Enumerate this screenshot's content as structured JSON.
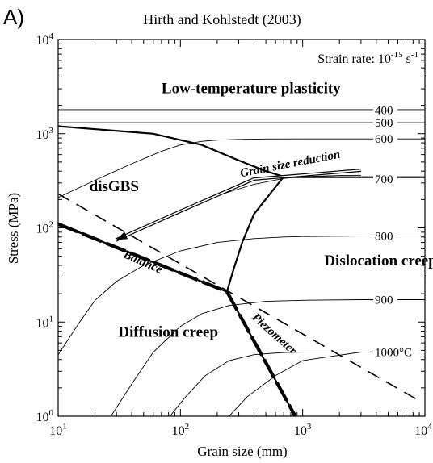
{
  "panel_label": "A)",
  "chart_data": {
    "type": "line",
    "title": "Hirth and Kohlstedt (2003)",
    "subtitle_main": "Strain rate: 10",
    "subtitle_exp": "-15",
    "subtitle_tail": " s",
    "subtitle_tail_exp": "-1",
    "xlabel": "Grain size (mm)",
    "ylabel": "Stress (MPa)",
    "x_scale": "log",
    "y_scale": "log",
    "xlim": [
      10,
      10000
    ],
    "ylim": [
      1,
      10000
    ],
    "x_ticks": [
      {
        "base": "10",
        "exp": "1",
        "v": 10
      },
      {
        "base": "10",
        "exp": "2",
        "v": 100
      },
      {
        "base": "10",
        "exp": "3",
        "v": 1000
      },
      {
        "base": "10",
        "exp": "4",
        "v": 10000
      }
    ],
    "y_ticks": [
      {
        "base": "10",
        "exp": "0",
        "v": 1
      },
      {
        "base": "10",
        "exp": "1",
        "v": 10
      },
      {
        "base": "10",
        "exp": "2",
        "v": 100
      },
      {
        "base": "10",
        "exp": "3",
        "v": 1000
      },
      {
        "base": "10",
        "exp": "4",
        "v": 10000
      }
    ],
    "grid": false,
    "region_labels": [
      {
        "text": "Low-temperature plasticity",
        "x": 70,
        "y": 2700
      },
      {
        "text": "disGBS",
        "x": 18,
        "y": 245
      },
      {
        "text": "Dislocation creep",
        "x": 1500,
        "y": 40
      },
      {
        "text": "Diffusion creep",
        "x": 31,
        "y": 7
      }
    ],
    "annotations": [
      {
        "text": "Grain size reduction",
        "x": 800,
        "y": 440,
        "angle": -11
      },
      {
        "text": "Balance",
        "x": 48,
        "y": 40,
        "angle": 24
      },
      {
        "text": "Piezometer",
        "x": 560,
        "y": 7,
        "angle": 42
      }
    ],
    "isotherm_labels": [
      {
        "text": "400",
        "y": 1780
      },
      {
        "text": "500",
        "y": 1310
      },
      {
        "text": "600",
        "y": 880
      },
      {
        "text": "700",
        "y": 330
      },
      {
        "text": "800",
        "y": 82
      },
      {
        "text": "900",
        "y": 17.3
      },
      {
        "text": "1000°C",
        "y": 4.8
      }
    ],
    "isotherms": [
      {
        "label_ref": "400",
        "x": [
          10,
          10000
        ],
        "y": [
          1800,
          1800
        ]
      },
      {
        "label_ref": "500",
        "x": [
          10,
          10000
        ],
        "y": [
          1310,
          1310
        ]
      },
      {
        "label_ref": "600",
        "x": [
          10,
          20,
          40,
          70,
          100,
          150,
          200,
          300,
          500,
          1000,
          3000,
          10000
        ],
        "y": [
          210,
          320,
          480,
          650,
          760,
          830,
          855,
          870,
          878,
          880,
          880,
          880
        ]
      },
      {
        "label_ref": "700",
        "x": [
          30,
          50,
          100,
          200,
          400,
          700,
          1000,
          2000,
          3000
        ],
        "y": [
          72,
          100,
          150,
          220,
          290,
          335,
          350,
          360,
          362
        ]
      },
      {
        "label_ref": "800",
        "x": [
          10,
          15,
          20,
          30,
          50,
          100,
          200,
          400,
          700,
          1000,
          3000,
          10000
        ],
        "y": [
          4.5,
          10,
          17,
          27,
          40,
          57,
          70,
          77,
          80,
          81,
          82,
          82
        ]
      },
      {
        "label_ref": "900",
        "x": [
          27,
          40,
          60,
          100,
          150,
          250,
          500,
          1000,
          3000,
          10000
        ],
        "y": [
          1,
          2.2,
          4.8,
          9,
          12.3,
          15,
          16.6,
          17,
          17.3,
          17.3
        ]
      },
      {
        "label_ref": "1000",
        "x": [
          82,
          110,
          160,
          250,
          400,
          700,
          1000,
          3000,
          10000
        ],
        "y": [
          1,
          1.6,
          2.7,
          3.9,
          4.5,
          4.75,
          4.8,
          4.8,
          4.8
        ]
      },
      {
        "label_ref": "1100",
        "x": [
          250,
          350,
          600,
          1000,
          3000
        ],
        "y": [
          1,
          1.6,
          2.7,
          3.9,
          4.8
        ]
      }
    ],
    "mechanism_boundaries": [
      {
        "x": [
          10,
          60,
          150,
          300,
          500,
          700
        ],
        "y": [
          1200,
          1000,
          760,
          520,
          400,
          350
        ]
      },
      {
        "x": [
          700,
          10000
        ],
        "y": [
          345,
          345
        ]
      },
      {
        "x": [
          700,
          400,
          320,
          270,
          240
        ],
        "y": [
          350,
          140,
          70,
          35,
          21
        ]
      },
      {
        "x": [
          10,
          240
        ],
        "y": [
          110,
          21
        ]
      },
      {
        "x": [
          240,
          870
        ],
        "y": [
          21,
          1
        ]
      }
    ],
    "balance_line": {
      "x": [
        10,
        240
      ],
      "y": [
        110,
        21
      ]
    },
    "piezometer_line": {
      "x": [
        240,
        870
      ],
      "y": [
        21,
        1
      ]
    },
    "dashed_line": {
      "x": [
        10,
        9500
      ],
      "y": [
        230,
        1.4
      ]
    },
    "arrow": {
      "x": [
        3000,
        400,
        100,
        30
      ],
      "y": [
        410,
        330,
        150,
        75
      ]
    }
  }
}
